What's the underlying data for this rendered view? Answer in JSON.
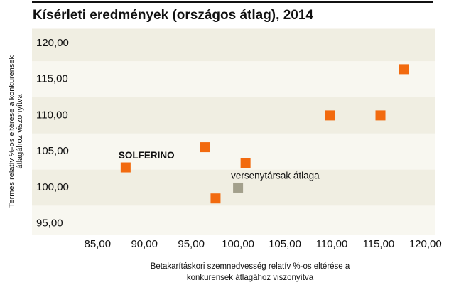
{
  "chart_data": {
    "type": "scatter",
    "title": "Kísérleti eredmények (országos átlag), 2014",
    "x_label": [
      "Betakarításkori szemnedvesség  relatív %-os eltérése a",
      "konkurensek átlagához viszonyítva"
    ],
    "y_label": [
      "Termés relatív %-os eltérése a konkurensek",
      "átlagához viszonyítva"
    ],
    "series": [
      {
        "color": "#f26a0f",
        "x": [
          88.0,
          96.5,
          97.6,
          100.8,
          109.8,
          115.2,
          117.7
        ],
        "values": [
          102.8,
          105.6,
          98.5,
          103.4,
          110.0,
          110.0,
          116.4
        ],
        "labels": [
          "SOLFERINO",
          null,
          null,
          null,
          null,
          null,
          null
        ]
      },
      {
        "color": "#a3a08c",
        "x": [
          100
        ],
        "values": [
          100
        ],
        "labels": [
          "versenytársak átlaga"
        ]
      }
    ],
    "xlim": [
      78,
      121
    ],
    "ylim": [
      93.5,
      122
    ],
    "xticks": [
      {
        "value": 85,
        "label": "85,00"
      },
      {
        "value": 90,
        "label": "90,00"
      },
      {
        "value": 95,
        "label": "95,00"
      },
      {
        "value": 100,
        "label": "100,00"
      },
      {
        "value": 105,
        "label": "105,00"
      },
      {
        "value": 110,
        "label": "110,00"
      },
      {
        "value": 115,
        "label": "115,00"
      },
      {
        "value": 120,
        "label": "120,00"
      }
    ],
    "yticks": [
      {
        "value": 95,
        "label": "95,00"
      },
      {
        "value": 100,
        "label": "100,00"
      },
      {
        "value": 105,
        "label": "105,00"
      },
      {
        "value": 110,
        "label": "110,00"
      },
      {
        "value": 115,
        "label": "115,00"
      },
      {
        "value": 120,
        "label": "120,00"
      }
    ]
  }
}
